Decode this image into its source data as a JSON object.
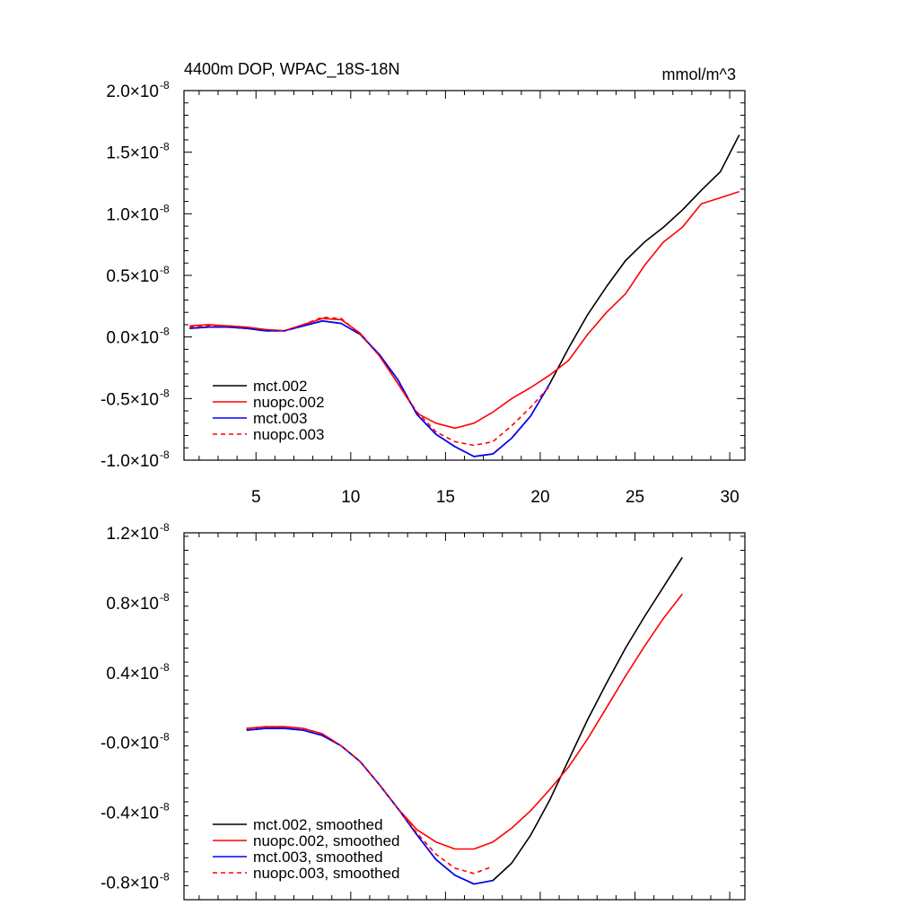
{
  "chart_data": [
    {
      "type": "line",
      "title": "4400m DOP, WPAC_18S-18N",
      "units": "mmol/m^3",
      "xlim": [
        1.2,
        30.8
      ],
      "ylim": [
        -1.0,
        2.0
      ],
      "xticks": [
        5,
        10,
        15,
        20,
        25,
        30
      ],
      "xtick_labels": [
        "5",
        "10",
        "15",
        "20",
        "25",
        "30"
      ],
      "yticks": [
        -1.0,
        -0.5,
        0.0,
        0.5,
        1.0,
        1.5,
        2.0
      ],
      "ytick_mantissas": [
        "-1.0",
        "-0.5",
        "0.0",
        "0.5",
        "1.0",
        "1.5",
        "2.0"
      ],
      "ytick_base": "×10",
      "ytick_exponent": "-8",
      "legend": "bottom-left",
      "series": [
        {
          "name": "mct.002",
          "color": "#000000",
          "dashed": false,
          "x": [
            1.5,
            2.5,
            3.5,
            4.5,
            5.5,
            6.5,
            7.5,
            8.5,
            9.5,
            10.5,
            11.5,
            12.5,
            13.5,
            14.5,
            15.5,
            16.5,
            17.5,
            18.5,
            19.5,
            20.5,
            21.5,
            22.5,
            23.5,
            24.5,
            25.5,
            26.5,
            27.5,
            28.5,
            29.5,
            30.5
          ],
          "y": [
            0.07,
            0.08,
            0.08,
            0.07,
            0.05,
            0.05,
            0.09,
            0.13,
            0.11,
            0.02,
            -0.14,
            -0.35,
            -0.63,
            -0.79,
            -0.89,
            -0.97,
            -0.95,
            -0.82,
            -0.64,
            -0.38,
            -0.09,
            0.18,
            0.41,
            0.62,
            0.77,
            0.89,
            1.03,
            1.19,
            1.34,
            1.64
          ]
        },
        {
          "name": "nuopc.002",
          "color": "#ff0000",
          "dashed": false,
          "x": [
            1.5,
            2.5,
            3.5,
            4.5,
            5.5,
            6.5,
            7.5,
            8.5,
            9.5,
            10.5,
            11.5,
            12.5,
            13.5,
            14.5,
            15.5,
            16.5,
            17.5,
            18.5,
            19.5,
            20.5,
            21.5,
            22.5,
            23.5,
            24.5,
            25.5,
            26.5,
            27.5,
            28.5,
            29.5,
            30.5
          ],
          "y": [
            0.09,
            0.1,
            0.09,
            0.08,
            0.06,
            0.05,
            0.1,
            0.15,
            0.14,
            0.03,
            -0.15,
            -0.38,
            -0.62,
            -0.7,
            -0.74,
            -0.7,
            -0.61,
            -0.5,
            -0.41,
            -0.31,
            -0.19,
            0.02,
            0.2,
            0.35,
            0.58,
            0.77,
            0.89,
            1.08,
            1.13,
            1.18
          ]
        },
        {
          "name": "mct.003",
          "color": "#0000ff",
          "dashed": false,
          "x": [
            1.5,
            2.5,
            3.5,
            4.5,
            5.5,
            6.5,
            7.5,
            8.5,
            9.5,
            10.5,
            11.5,
            12.5,
            13.5,
            14.5,
            15.5,
            16.5,
            17.5,
            18.5,
            19.5,
            20.5
          ],
          "y": [
            0.07,
            0.08,
            0.08,
            0.07,
            0.05,
            0.05,
            0.09,
            0.13,
            0.11,
            0.02,
            -0.14,
            -0.35,
            -0.63,
            -0.79,
            -0.89,
            -0.97,
            -0.95,
            -0.82,
            -0.64,
            -0.38
          ]
        },
        {
          "name": "nuopc.003",
          "color": "#ff0000",
          "dashed": true,
          "x": [
            1.5,
            2.5,
            3.5,
            4.5,
            5.5,
            6.5,
            7.5,
            8.5,
            9.5,
            10.5,
            11.5,
            12.5,
            13.5,
            14.5,
            15.5,
            16.5,
            17.5,
            18.5,
            19.5,
            20.5
          ],
          "y": [
            0.08,
            0.09,
            0.09,
            0.08,
            0.06,
            0.05,
            0.1,
            0.16,
            0.15,
            0.02,
            -0.15,
            -0.38,
            -0.61,
            -0.77,
            -0.85,
            -0.88,
            -0.85,
            -0.72,
            -0.57,
            -0.4
          ]
        }
      ]
    },
    {
      "type": "line",
      "title": "",
      "units": "",
      "xlim": [
        1.2,
        30.8
      ],
      "ylim": [
        -0.9,
        1.2
      ],
      "xticks": [
        5,
        10,
        15,
        20,
        25,
        30
      ],
      "xtick_labels": [],
      "yticks": [
        -0.8,
        -0.4,
        0.0,
        0.4,
        0.8,
        1.2
      ],
      "ytick_mantissas": [
        "-0.8",
        "-0.4",
        "-0.0",
        "0.4",
        "0.8",
        "1.2"
      ],
      "ytick_base": "×10",
      "ytick_exponent": "-8",
      "legend": "bottom-left",
      "series": [
        {
          "name": "mct.002, smoothed",
          "color": "#000000",
          "dashed": false,
          "x": [
            4.5,
            5.5,
            6.5,
            7.5,
            8.5,
            9.5,
            10.5,
            11.5,
            12.5,
            13.5,
            14.5,
            15.5,
            16.5,
            17.5,
            18.5,
            19.5,
            20.5,
            21.5,
            22.5,
            23.5,
            24.5,
            25.5,
            26.5,
            27.5
          ],
          "y": [
            0.07,
            0.08,
            0.08,
            0.07,
            0.04,
            -0.02,
            -0.11,
            -0.24,
            -0.38,
            -0.53,
            -0.67,
            -0.76,
            -0.81,
            -0.79,
            -0.69,
            -0.53,
            -0.33,
            -0.1,
            0.13,
            0.34,
            0.54,
            0.72,
            0.89,
            1.06
          ]
        },
        {
          "name": "nuopc.002, smoothed",
          "color": "#ff0000",
          "dashed": false,
          "x": [
            4.5,
            5.5,
            6.5,
            7.5,
            8.5,
            9.5,
            10.5,
            11.5,
            12.5,
            13.5,
            14.5,
            15.5,
            16.5,
            17.5,
            18.5,
            19.5,
            20.5,
            21.5,
            22.5,
            23.5,
            24.5,
            25.5,
            26.5,
            27.5
          ],
          "y": [
            0.08,
            0.09,
            0.09,
            0.08,
            0.05,
            -0.02,
            -0.11,
            -0.24,
            -0.38,
            -0.5,
            -0.57,
            -0.61,
            -0.61,
            -0.57,
            -0.49,
            -0.39,
            -0.27,
            -0.14,
            0.02,
            0.2,
            0.38,
            0.55,
            0.71,
            0.85
          ]
        },
        {
          "name": "mct.003, smoothed",
          "color": "#0000ff",
          "dashed": false,
          "x": [
            4.5,
            5.5,
            6.5,
            7.5,
            8.5,
            9.5,
            10.5,
            11.5,
            12.5,
            13.5,
            14.5,
            15.5,
            16.5,
            17.5
          ],
          "y": [
            0.07,
            0.08,
            0.08,
            0.07,
            0.04,
            -0.02,
            -0.11,
            -0.24,
            -0.38,
            -0.53,
            -0.67,
            -0.76,
            -0.81,
            -0.79
          ]
        },
        {
          "name": "nuopc.003, smoothed",
          "color": "#ff0000",
          "dashed": true,
          "x": [
            4.5,
            5.5,
            6.5,
            7.5,
            8.5,
            9.5,
            10.5,
            11.5,
            12.5,
            13.5,
            14.5,
            15.5,
            16.5,
            17.5
          ],
          "y": [
            0.08,
            0.09,
            0.09,
            0.08,
            0.05,
            -0.02,
            -0.11,
            -0.24,
            -0.38,
            -0.52,
            -0.64,
            -0.72,
            -0.75,
            -0.71
          ]
        }
      ]
    }
  ]
}
